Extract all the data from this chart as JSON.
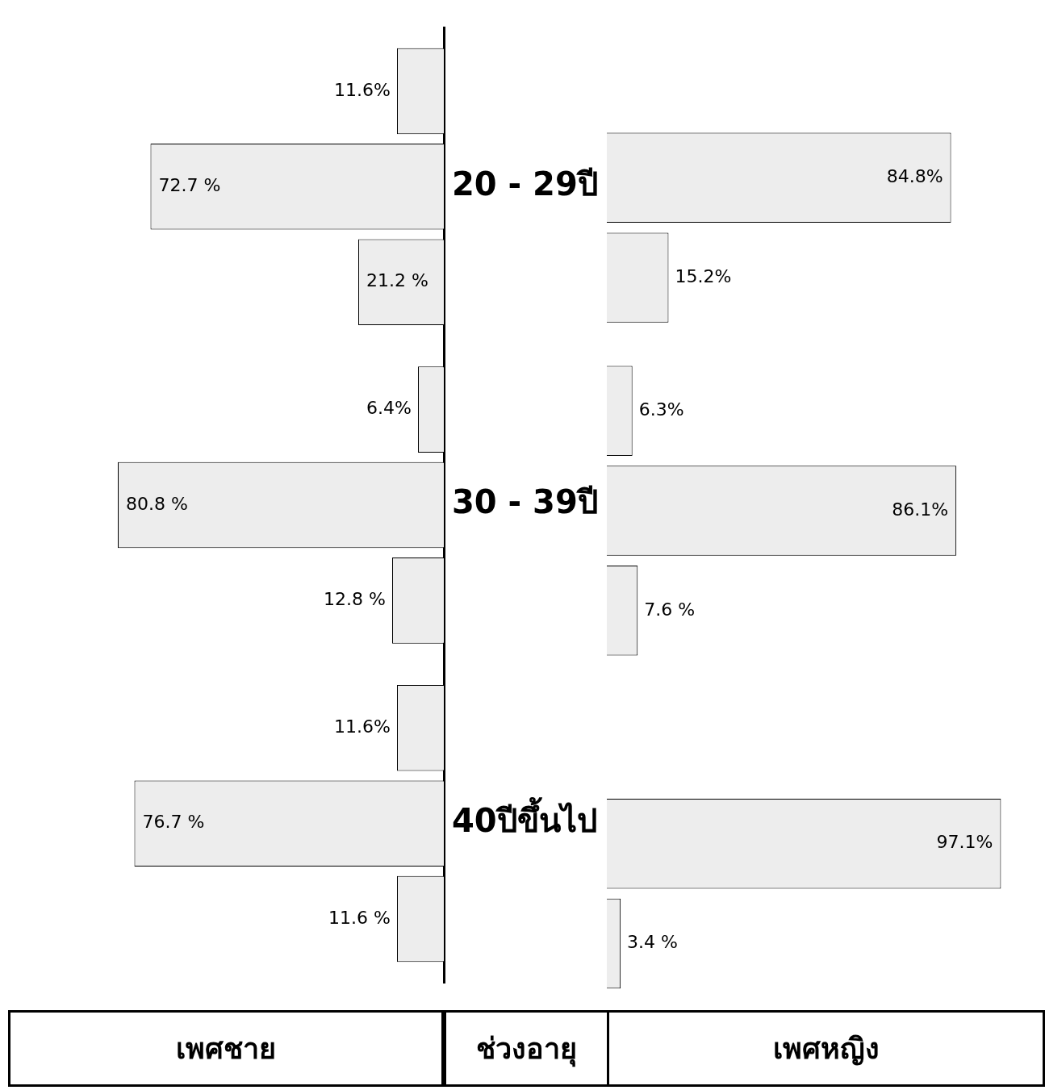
{
  "chart_data": [
    {
      "type": "bar",
      "orientation": "horizontal",
      "categories": [
        "20 - 29ปี",
        "30 - 39ปี",
        "40ปีขึ้นไป"
      ],
      "xlabel": "เพศชาย",
      "ylabel": "ช่วงอายุ",
      "tick_labels": "y",
      "grid": false,
      "legend": false,
      "series": [
        {
          "color": "#ededed",
          "values": [
            11.6,
            6.4,
            11.6
          ],
          "value_labels": [
            "11.6%",
            "6.4%",
            "11.6%"
          ]
        },
        {
          "color": "#ededed",
          "values": [
            72.7,
            80.8,
            76.7
          ],
          "value_labels": [
            "72.7 %",
            "80.8 %",
            "76.7 %"
          ]
        },
        {
          "color": "#ededed",
          "values": [
            21.2,
            12.8,
            11.6
          ],
          "value_labels": [
            "21.2 %",
            "12.8 %",
            "11.6 %"
          ]
        }
      ]
    },
    {
      "type": "bar",
      "orientation": "horizontal",
      "categories": [
        null,
        null,
        null
      ],
      "xlabel": "เพศหญิง",
      "tick_labels": false,
      "grid": false,
      "legend": false,
      "series": [
        {
          "color": "#ededed",
          "values": [
            null,
            6.3,
            null
          ],
          "value_labels": [
            null,
            "6.3%",
            null
          ]
        },
        {
          "color": "#ededed",
          "values": [
            84.8,
            86.1,
            97.1
          ],
          "value_labels": [
            "84.8%",
            "86.1%",
            "97.1%"
          ]
        },
        {
          "color": "#ededed",
          "values": [
            15.2,
            7.6,
            3.4
          ],
          "value_labels": [
            "15.2%",
            "7.6 %",
            "3.4 %"
          ]
        }
      ]
    }
  ]
}
